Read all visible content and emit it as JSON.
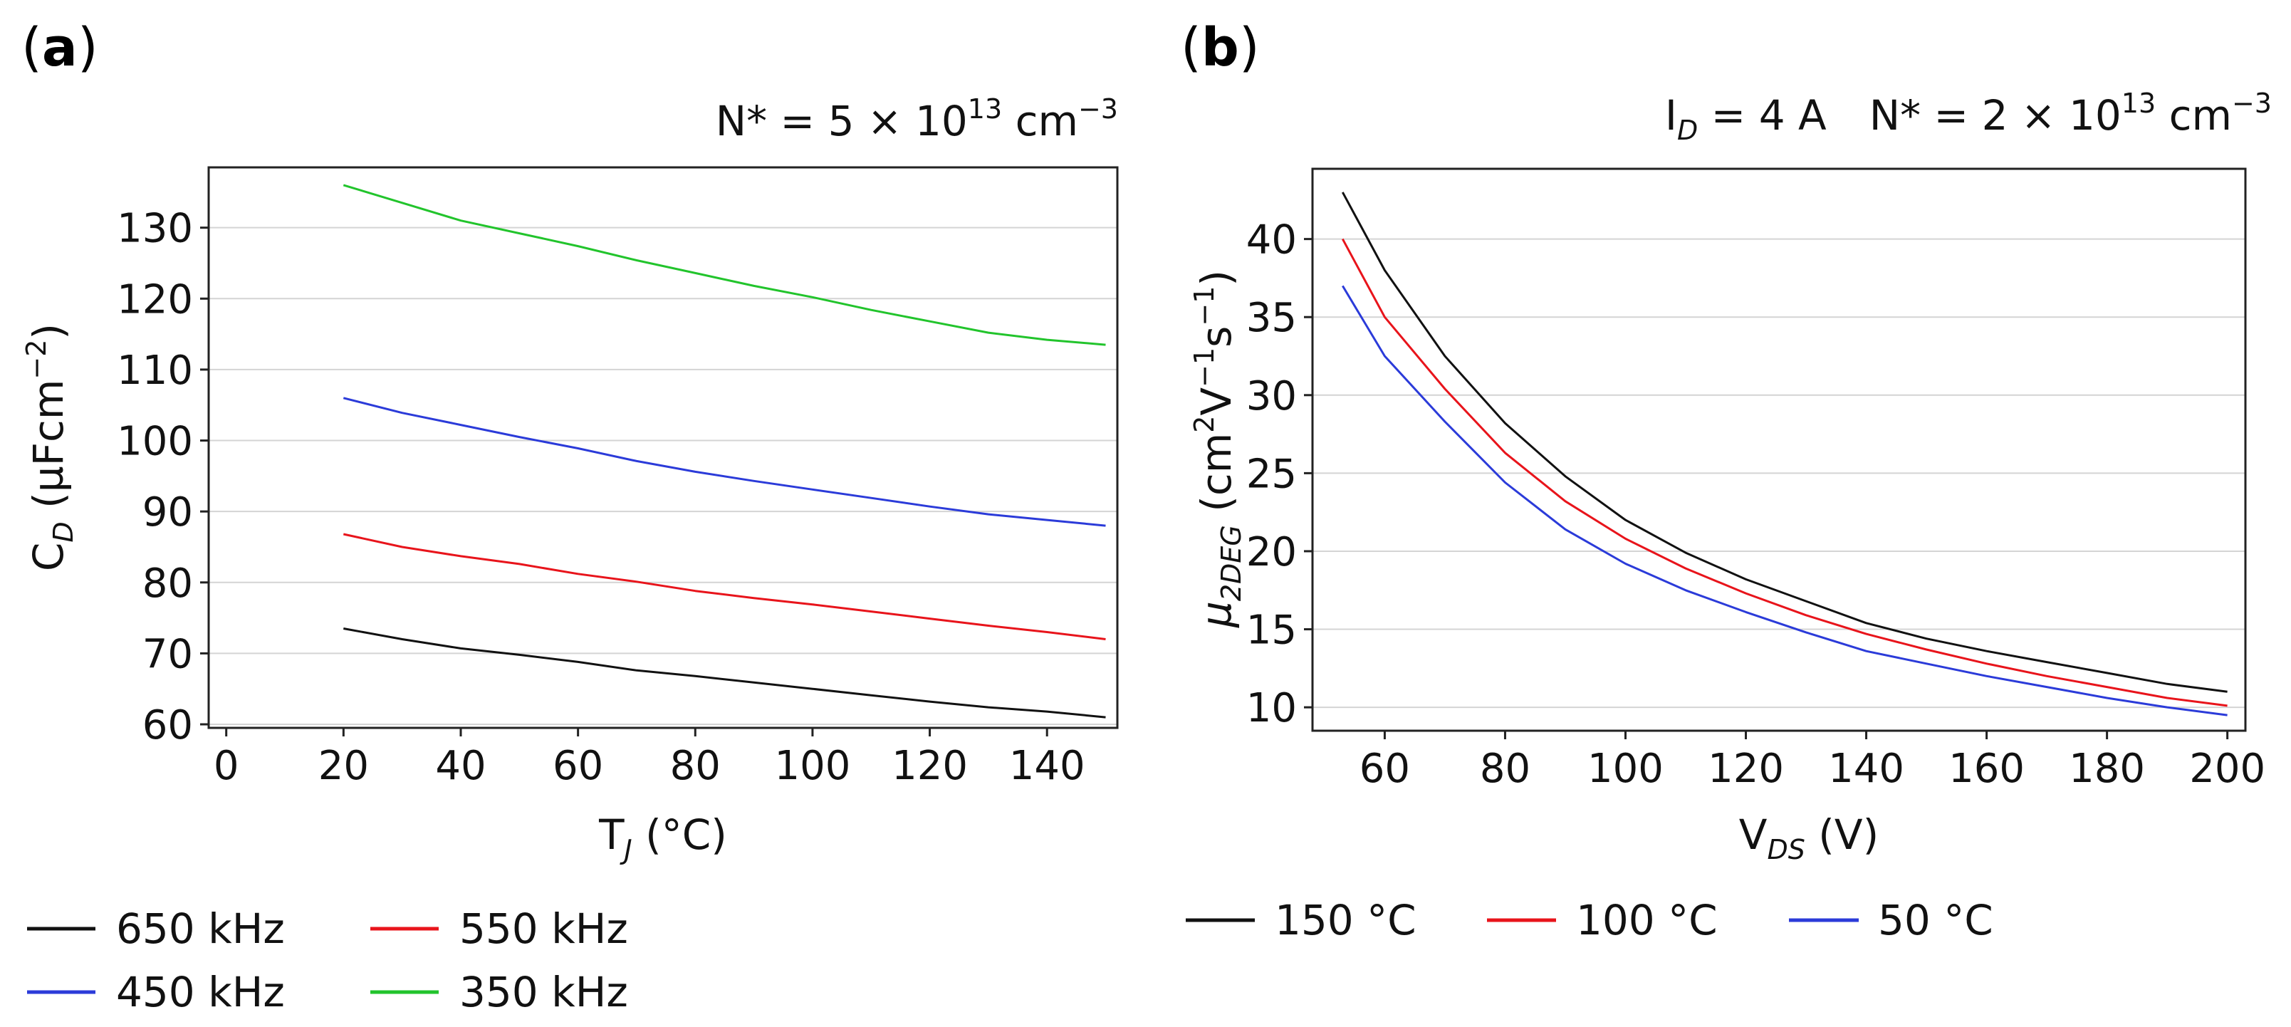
{
  "colors": {
    "black": "#111111",
    "red": "#e8141b",
    "blue": "#2b3bd9",
    "green": "#22c42c"
  },
  "chart_data": [
    {
      "type": "line",
      "panel": "(a)",
      "title": "",
      "condition": "N* = 5 × 10¹³ cm⁻³",
      "condition_parts": {
        "lhs": "N* = 5 × 10",
        "exp": "13",
        "unit": " cm",
        "unit_exp": "−3"
      },
      "xlabel_main": "T",
      "xlabel_sub": "J",
      "xlabel_rest": " (°C)",
      "ylabel_main": "C",
      "ylabel_sub": "D",
      "ylabel_rest": " (µFcm",
      "ylabel_exp": "−2",
      "ylabel_close": ")",
      "xlim": [
        -3,
        152
      ],
      "ylim": [
        59.5,
        138.5
      ],
      "xticks": [
        0,
        20,
        40,
        60,
        80,
        100,
        120,
        140
      ],
      "xtick_labels": [
        "0",
        "20",
        "40",
        "60",
        "80",
        "100",
        "120",
        "140"
      ],
      "yticks": [
        60,
        70,
        80,
        90,
        100,
        110,
        120,
        130
      ],
      "ytick_labels": [
        "60",
        "70",
        "80",
        "90",
        "100",
        "110",
        "120",
        "130"
      ],
      "x": [
        20,
        30,
        40,
        50,
        60,
        70,
        80,
        90,
        100,
        110,
        120,
        130,
        140,
        150
      ],
      "series": [
        {
          "name": "650 kHz",
          "color": "#111111",
          "values": [
            73.5,
            72.0,
            70.7,
            69.8,
            68.8,
            67.6,
            66.8,
            65.9,
            65.0,
            64.1,
            63.2,
            62.4,
            61.8,
            61.0
          ]
        },
        {
          "name": "550 kHz",
          "color": "#e8141b",
          "values": [
            86.8,
            85.0,
            83.7,
            82.6,
            81.2,
            80.1,
            78.8,
            77.8,
            76.9,
            75.9,
            74.9,
            73.9,
            73.0,
            72.0
          ]
        },
        {
          "name": "450 kHz",
          "color": "#2b3bd9",
          "values": [
            106.0,
            103.9,
            102.2,
            100.5,
            98.9,
            97.1,
            95.6,
            94.3,
            93.1,
            91.9,
            90.7,
            89.6,
            88.8,
            88.0
          ]
        },
        {
          "name": "350 kHz",
          "color": "#22c42c",
          "values": [
            136.0,
            133.5,
            131.0,
            129.2,
            127.4,
            125.4,
            123.6,
            121.8,
            120.2,
            118.4,
            116.8,
            115.2,
            114.2,
            113.5
          ]
        }
      ],
      "legend": [
        "650 kHz",
        "550 kHz",
        "450 kHz",
        "350 kHz"
      ]
    },
    {
      "type": "line",
      "panel": "(b)",
      "title": "",
      "condition_id_main": "I",
      "condition_id_sub": "D",
      "condition_id_rest": " = 4 A",
      "condition_parts": {
        "lhs": "N* = 2 × 10",
        "exp": "13",
        "unit": " cm",
        "unit_exp": "−3"
      },
      "xlabel_main": "V",
      "xlabel_sub": "DS",
      "xlabel_rest": " (V)",
      "ylabel_main": "μ",
      "ylabel_sub": "2DEG",
      "ylabel_rest": " (cm",
      "ylabel_exp1": "2",
      "ylabel_mid": "V",
      "ylabel_exp2": "−1",
      "ylabel_mid2": "s",
      "ylabel_exp3": "−1",
      "ylabel_close": ")",
      "xlim": [
        48,
        203
      ],
      "ylim": [
        8.5,
        44.5
      ],
      "xticks": [
        60,
        80,
        100,
        120,
        140,
        160,
        180,
        200
      ],
      "xtick_labels": [
        "60",
        "80",
        "100",
        "120",
        "140",
        "160",
        "180",
        "200"
      ],
      "yticks": [
        10,
        15,
        20,
        25,
        30,
        35,
        40
      ],
      "ytick_labels": [
        "10",
        "15",
        "20",
        "25",
        "30",
        "35",
        "40"
      ],
      "x": [
        53,
        60,
        70,
        80,
        90,
        100,
        110,
        120,
        130,
        140,
        150,
        160,
        170,
        180,
        190,
        200
      ],
      "series": [
        {
          "name": "150 °C",
          "color": "#111111",
          "values": [
            43.0,
            38.0,
            32.5,
            28.2,
            24.8,
            22.0,
            19.9,
            18.2,
            16.8,
            15.4,
            14.4,
            13.6,
            12.9,
            12.2,
            11.5,
            11.0
          ]
        },
        {
          "name": "100 °C",
          "color": "#e8141b",
          "values": [
            40.0,
            35.0,
            30.4,
            26.3,
            23.2,
            20.8,
            18.9,
            17.3,
            15.9,
            14.7,
            13.7,
            12.8,
            12.0,
            11.3,
            10.6,
            10.1
          ]
        },
        {
          "name": "50 °C",
          "color": "#2b3bd9",
          "values": [
            37.0,
            32.5,
            28.3,
            24.4,
            21.4,
            19.2,
            17.5,
            16.1,
            14.8,
            13.6,
            12.8,
            12.0,
            11.3,
            10.6,
            10.0,
            9.5
          ]
        }
      ],
      "legend": [
        "150 °C",
        "100 °C",
        "50 °C"
      ]
    }
  ]
}
